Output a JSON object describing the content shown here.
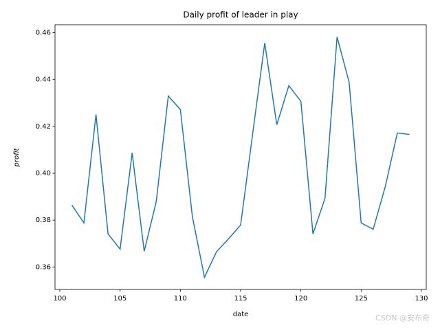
{
  "chart_data": {
    "type": "line",
    "title": "Daily profit of leader in play",
    "x_label": "date",
    "y_label": "profit",
    "x": [
      101,
      102,
      103,
      104,
      105,
      106,
      107,
      108,
      109,
      110,
      111,
      112,
      113,
      114,
      115,
      116,
      117,
      118,
      119,
      120,
      121,
      122,
      123,
      124,
      125,
      126,
      127,
      128,
      129
    ],
    "series": [
      {
        "color": "#1f77b4",
        "values": [
          0.3864,
          0.3788,
          0.4251,
          0.3741,
          0.3676,
          0.4087,
          0.3667,
          0.3879,
          0.433,
          0.4272,
          0.3814,
          0.3556,
          0.3665,
          0.372,
          0.3779,
          0.4169,
          0.4556,
          0.4207,
          0.4374,
          0.4307,
          0.3741,
          0.3893,
          0.4582,
          0.4389,
          0.3788,
          0.3761,
          0.3943,
          0.4172,
          0.4166
        ]
      }
    ],
    "xlim": [
      99.6,
      130.4
    ],
    "xticks": [
      100,
      105,
      110,
      115,
      120,
      125,
      130
    ],
    "ylim": [
      0.3504,
      0.4634
    ],
    "yticks": [
      0.36,
      0.38,
      {
        "value": 0.4,
        "label": "0.40"
      },
      0.42,
      0.44,
      0.46
    ]
  },
  "watermark": "CSDN @安布奇"
}
